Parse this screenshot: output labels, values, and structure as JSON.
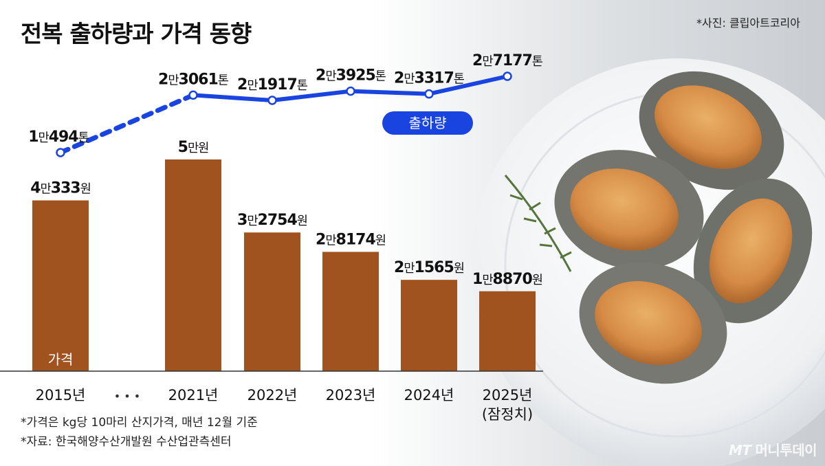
{
  "title": "전복 출하량과 가격 동향",
  "photo_credit": "*사진: 클립아트코리아",
  "notes": [
    "*가격은 kg당 10마리 산지가격, 매년 12월 기준",
    "*자료: 한국해양수산개발원 수산업관측센터"
  ],
  "logo": {
    "mt": "MT",
    "text": "머니투데이"
  },
  "colors": {
    "bar": "#a0531f",
    "line": "#1a44e0",
    "badge": "#1a44e0",
    "text": "#111111"
  },
  "chart_data": {
    "type": "bar",
    "categories": [
      "2015년",
      "2021년",
      "2022년",
      "2023년",
      "2024년",
      "2025년"
    ],
    "category_sublabels": [
      "",
      "",
      "",
      "",
      "",
      "(잠정치)"
    ],
    "gap_marker": "• • •",
    "series": [
      {
        "name": "가격",
        "type": "bar",
        "values": [
          40333,
          50000,
          32754,
          28174,
          21565,
          18870
        ],
        "labels": [
          [
            {
              "t": "4",
              "b": true
            },
            {
              "t": "만",
              "b": false
            },
            {
              "t": "333",
              "b": true
            },
            {
              "t": "원",
              "b": false
            }
          ],
          [
            {
              "t": "5",
              "b": true
            },
            {
              "t": "만원",
              "b": false
            }
          ],
          [
            {
              "t": "3",
              "b": true
            },
            {
              "t": "만",
              "b": false
            },
            {
              "t": "2754",
              "b": true
            },
            {
              "t": "원",
              "b": false
            }
          ],
          [
            {
              "t": "2",
              "b": true
            },
            {
              "t": "만",
              "b": false
            },
            {
              "t": "8174",
              "b": true
            },
            {
              "t": "원",
              "b": false
            }
          ],
          [
            {
              "t": "2",
              "b": true
            },
            {
              "t": "만",
              "b": false
            },
            {
              "t": "1565",
              "b": true
            },
            {
              "t": "원",
              "b": false
            }
          ],
          [
            {
              "t": "1",
              "b": true
            },
            {
              "t": "만",
              "b": false
            },
            {
              "t": "8870",
              "b": true
            },
            {
              "t": "원",
              "b": false
            }
          ]
        ]
      },
      {
        "name": "출하량",
        "type": "line",
        "values": [
          10494,
          23061,
          21917,
          23925,
          23317,
          27177
        ],
        "labels": [
          [
            {
              "t": "1",
              "b": true
            },
            {
              "t": "만",
              "b": false
            },
            {
              "t": "494",
              "b": true
            },
            {
              "t": "톤",
              "b": false
            }
          ],
          [
            {
              "t": "2",
              "b": true
            },
            {
              "t": "만",
              "b": false
            },
            {
              "t": "3061",
              "b": true
            },
            {
              "t": "톤",
              "b": false
            }
          ],
          [
            {
              "t": "2",
              "b": true
            },
            {
              "t": "만",
              "b": false
            },
            {
              "t": "1917",
              "b": true
            },
            {
              "t": "톤",
              "b": false
            }
          ],
          [
            {
              "t": "2",
              "b": true
            },
            {
              "t": "만",
              "b": false
            },
            {
              "t": "3925",
              "b": true
            },
            {
              "t": "톤",
              "b": false
            }
          ],
          [
            {
              "t": "2",
              "b": true
            },
            {
              "t": "만",
              "b": false
            },
            {
              "t": "3317",
              "b": true
            },
            {
              "t": "톤",
              "b": false
            }
          ],
          [
            {
              "t": "2",
              "b": true
            },
            {
              "t": "만",
              "b": false
            },
            {
              "t": "7177",
              "b": true
            },
            {
              "t": "톤",
              "b": false
            }
          ]
        ]
      }
    ],
    "price_ylim": [
      0,
      50000
    ],
    "volume_ylim": [
      10494,
      27177
    ],
    "grid": false,
    "legend": "none"
  }
}
